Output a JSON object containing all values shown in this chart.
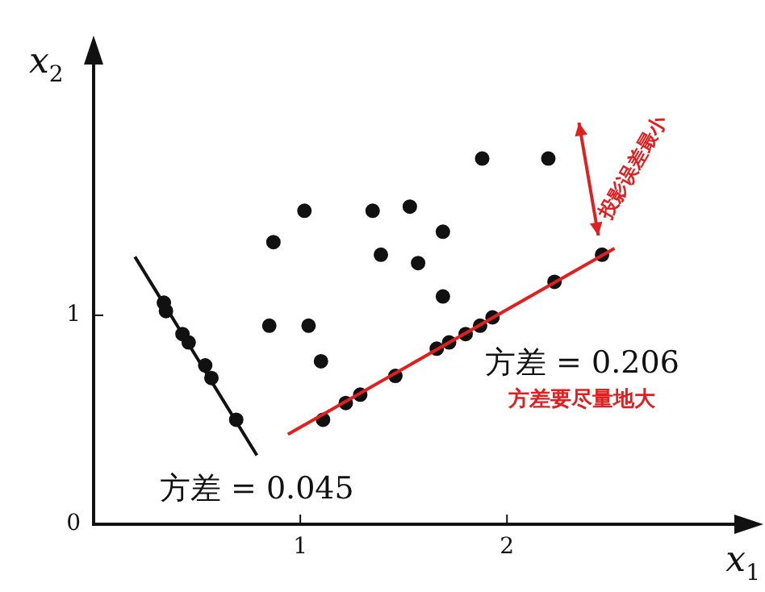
{
  "chart_data": {
    "type": "scatter",
    "xlabel": "x$_{1}$",
    "ylabel": "x$_{2}$",
    "xlim": [
      0,
      3.1
    ],
    "ylim": [
      0,
      2.2
    ],
    "xticks": [
      {
        "value": 0,
        "label": null
      },
      1,
      2
    ],
    "yticks": [
      0,
      1
    ],
    "grid": false,
    "legend": false,
    "marker": "circle",
    "line_style": "solid",
    "series": [
      {
        "color": "#111111",
        "x": [
          1.02,
          1.35,
          1.53,
          0.87,
          1.69,
          1.39,
          1.57,
          1.69,
          0.85,
          1.04,
          1.1,
          1.88,
          2.2
        ],
        "values": [
          1.5,
          1.5,
          1.52,
          1.35,
          1.4,
          1.29,
          1.25,
          1.09,
          0.95,
          0.95,
          0.78,
          1.75,
          1.75
        ]
      },
      {
        "type": "line",
        "marker": "none",
        "color": "#111111",
        "x": [
          0.2,
          0.79
        ],
        "values": [
          1.28,
          0.33
        ]
      },
      {
        "color": "#111111",
        "x": [
          0.34,
          0.35,
          0.43,
          0.46,
          0.54,
          0.57,
          0.69
        ],
        "values": [
          1.06,
          1.02,
          0.91,
          0.87,
          0.76,
          0.7,
          0.5
        ]
      },
      {
        "type": "line",
        "marker": "none",
        "color": "#e02020",
        "x": [
          0.94,
          2.52
        ],
        "values": [
          0.43,
          1.32
        ]
      },
      {
        "color": "#111111",
        "x": [
          1.11,
          1.22,
          1.29,
          1.46,
          1.66,
          1.72,
          1.8,
          1.87,
          1.93,
          2.23,
          2.46
        ],
        "values": [
          0.5,
          0.58,
          0.62,
          0.71,
          0.84,
          0.87,
          0.91,
          0.95,
          0.99,
          1.16,
          1.29
        ]
      }
    ],
    "annotations": [
      "方差 = 0.045",
      "方差 = 0.206",
      "方差要尽量地大",
      "投影误差最小"
    ]
  }
}
